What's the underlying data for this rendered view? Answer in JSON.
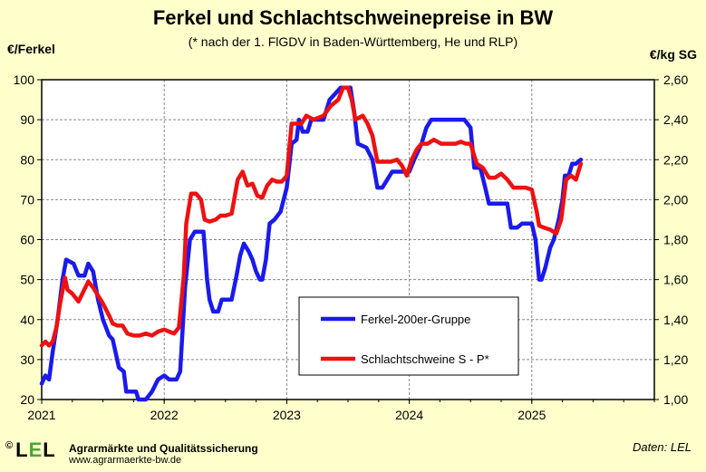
{
  "chart_data": {
    "type": "line",
    "title": "Ferkel und Schlachtschweinepreise in BW",
    "subtitle": "(* nach der 1. FlGDV in Baden-Württemberg, He und RLP)",
    "ylabel_left": "€/Ferkel",
    "ylabel_right": "€/kg SG",
    "x_ticks": [
      "2021",
      "2022",
      "2023",
      "2024",
      "2025"
    ],
    "x_range": [
      2021.0,
      2026.0
    ],
    "y_left_range": [
      20,
      100
    ],
    "y_left_ticks": [
      "20",
      "30",
      "40",
      "50",
      "60",
      "70",
      "80",
      "90",
      "100"
    ],
    "y_right_range": [
      1.0,
      2.6
    ],
    "y_right_ticks": [
      "1,00",
      "1,20",
      "1,40",
      "1,60",
      "1,80",
      "2,00",
      "2,20",
      "2,40",
      "2,60"
    ],
    "grid": true,
    "legend_position": "center",
    "series": [
      {
        "name": "Ferkel-200er-Gruppe",
        "axis": "left",
        "color": "#1a1aee",
        "points": [
          [
            2021.0,
            24
          ],
          [
            2021.03,
            26
          ],
          [
            2021.06,
            25
          ],
          [
            2021.09,
            32
          ],
          [
            2021.13,
            40
          ],
          [
            2021.17,
            50
          ],
          [
            2021.2,
            55
          ],
          [
            2021.26,
            54
          ],
          [
            2021.3,
            51
          ],
          [
            2021.35,
            51
          ],
          [
            2021.38,
            54
          ],
          [
            2021.42,
            52
          ],
          [
            2021.46,
            45
          ],
          [
            2021.5,
            40
          ],
          [
            2021.55,
            36
          ],
          [
            2021.58,
            35
          ],
          [
            2021.63,
            28
          ],
          [
            2021.67,
            27
          ],
          [
            2021.69,
            22
          ],
          [
            2021.77,
            22
          ],
          [
            2021.79,
            20
          ],
          [
            2021.85,
            20
          ],
          [
            2021.9,
            22
          ],
          [
            2021.95,
            25
          ],
          [
            2022.0,
            26
          ],
          [
            2022.04,
            25
          ],
          [
            2022.1,
            25
          ],
          [
            2022.13,
            27
          ],
          [
            2022.17,
            48
          ],
          [
            2022.21,
            60
          ],
          [
            2022.25,
            62
          ],
          [
            2022.32,
            62
          ],
          [
            2022.35,
            50
          ],
          [
            2022.37,
            45
          ],
          [
            2022.4,
            42
          ],
          [
            2022.44,
            42
          ],
          [
            2022.47,
            45
          ],
          [
            2022.55,
            45
          ],
          [
            2022.59,
            51
          ],
          [
            2022.62,
            56
          ],
          [
            2022.65,
            59
          ],
          [
            2022.69,
            57
          ],
          [
            2022.72,
            55
          ],
          [
            2022.75,
            52
          ],
          [
            2022.78,
            50
          ],
          [
            2022.8,
            50
          ],
          [
            2022.83,
            55
          ],
          [
            2022.86,
            64
          ],
          [
            2022.9,
            65
          ],
          [
            2022.95,
            67
          ],
          [
            2023.0,
            73
          ],
          [
            2023.04,
            84
          ],
          [
            2023.08,
            85
          ],
          [
            2023.1,
            90
          ],
          [
            2023.13,
            87
          ],
          [
            2023.17,
            87
          ],
          [
            2023.2,
            90
          ],
          [
            2023.3,
            90
          ],
          [
            2023.35,
            95
          ],
          [
            2023.38,
            96
          ],
          [
            2023.44,
            98
          ],
          [
            2023.49,
            98
          ],
          [
            2023.52,
            98
          ],
          [
            2023.55,
            92
          ],
          [
            2023.58,
            84
          ],
          [
            2023.65,
            83
          ],
          [
            2023.7,
            80
          ],
          [
            2023.74,
            73
          ],
          [
            2023.78,
            73
          ],
          [
            2023.82,
            75
          ],
          [
            2023.86,
            77
          ],
          [
            2023.9,
            77
          ],
          [
            2023.93,
            77
          ],
          [
            2023.96,
            77
          ],
          [
            2024.0,
            77
          ],
          [
            2024.04,
            80
          ],
          [
            2024.1,
            84
          ],
          [
            2024.14,
            88
          ],
          [
            2024.18,
            90
          ],
          [
            2024.25,
            90
          ],
          [
            2024.35,
            90
          ],
          [
            2024.45,
            90
          ],
          [
            2024.5,
            88
          ],
          [
            2024.53,
            78
          ],
          [
            2024.58,
            78
          ],
          [
            2024.62,
            73
          ],
          [
            2024.65,
            69
          ],
          [
            2024.7,
            69
          ],
          [
            2024.8,
            69
          ],
          [
            2024.83,
            63
          ],
          [
            2024.88,
            63
          ],
          [
            2024.92,
            64
          ],
          [
            2025.0,
            64
          ],
          [
            2025.03,
            60
          ],
          [
            2025.06,
            50
          ],
          [
            2025.08,
            50
          ],
          [
            2025.11,
            53
          ],
          [
            2025.15,
            58
          ],
          [
            2025.18,
            60
          ],
          [
            2025.22,
            65
          ],
          [
            2025.25,
            70
          ],
          [
            2025.27,
            76
          ],
          [
            2025.3,
            76
          ],
          [
            2025.33,
            79
          ],
          [
            2025.36,
            79
          ],
          [
            2025.4,
            80
          ]
        ]
      },
      {
        "name": "Schlachtschweine S - P*",
        "axis": "right",
        "color": "#ee1111",
        "points": [
          [
            2021.0,
            1.27
          ],
          [
            2021.03,
            1.29
          ],
          [
            2021.06,
            1.27
          ],
          [
            2021.09,
            1.29
          ],
          [
            2021.12,
            1.36
          ],
          [
            2021.15,
            1.48
          ],
          [
            2021.19,
            1.61
          ],
          [
            2021.21,
            1.55
          ],
          [
            2021.25,
            1.53
          ],
          [
            2021.3,
            1.49
          ],
          [
            2021.34,
            1.54
          ],
          [
            2021.38,
            1.59
          ],
          [
            2021.42,
            1.56
          ],
          [
            2021.46,
            1.52
          ],
          [
            2021.5,
            1.48
          ],
          [
            2021.55,
            1.42
          ],
          [
            2021.58,
            1.38
          ],
          [
            2021.62,
            1.37
          ],
          [
            2021.66,
            1.37
          ],
          [
            2021.7,
            1.33
          ],
          [
            2021.75,
            1.32
          ],
          [
            2021.8,
            1.32
          ],
          [
            2021.85,
            1.33
          ],
          [
            2021.9,
            1.32
          ],
          [
            2021.95,
            1.34
          ],
          [
            2022.0,
            1.35
          ],
          [
            2022.04,
            1.34
          ],
          [
            2022.08,
            1.33
          ],
          [
            2022.12,
            1.36
          ],
          [
            2022.16,
            1.62
          ],
          [
            2022.18,
            1.88
          ],
          [
            2022.22,
            2.03
          ],
          [
            2022.26,
            2.03
          ],
          [
            2022.3,
            2.0
          ],
          [
            2022.33,
            1.9
          ],
          [
            2022.37,
            1.89
          ],
          [
            2022.42,
            1.9
          ],
          [
            2022.46,
            1.92
          ],
          [
            2022.5,
            1.92
          ],
          [
            2022.55,
            1.93
          ],
          [
            2022.6,
            2.1
          ],
          [
            2022.64,
            2.14
          ],
          [
            2022.68,
            2.07
          ],
          [
            2022.72,
            2.08
          ],
          [
            2022.76,
            2.02
          ],
          [
            2022.8,
            2.01
          ],
          [
            2022.84,
            2.07
          ],
          [
            2022.88,
            2.1
          ],
          [
            2022.92,
            2.09
          ],
          [
            2022.96,
            2.09
          ],
          [
            2023.0,
            2.12
          ],
          [
            2023.04,
            2.38
          ],
          [
            2023.08,
            2.38
          ],
          [
            2023.12,
            2.38
          ],
          [
            2023.16,
            2.42
          ],
          [
            2023.22,
            2.4
          ],
          [
            2023.3,
            2.42
          ],
          [
            2023.36,
            2.47
          ],
          [
            2023.42,
            2.5
          ],
          [
            2023.46,
            2.56
          ],
          [
            2023.5,
            2.56
          ],
          [
            2023.53,
            2.5
          ],
          [
            2023.56,
            2.4
          ],
          [
            2023.62,
            2.42
          ],
          [
            2023.66,
            2.38
          ],
          [
            2023.7,
            2.32
          ],
          [
            2023.74,
            2.19
          ],
          [
            2023.8,
            2.19
          ],
          [
            2023.85,
            2.19
          ],
          [
            2023.9,
            2.2
          ],
          [
            2023.94,
            2.17
          ],
          [
            2023.98,
            2.12
          ],
          [
            2024.02,
            2.2
          ],
          [
            2024.06,
            2.25
          ],
          [
            2024.1,
            2.28
          ],
          [
            2024.15,
            2.28
          ],
          [
            2024.2,
            2.3
          ],
          [
            2024.26,
            2.28
          ],
          [
            2024.32,
            2.28
          ],
          [
            2024.38,
            2.28
          ],
          [
            2024.42,
            2.29
          ],
          [
            2024.46,
            2.28
          ],
          [
            2024.5,
            2.28
          ],
          [
            2024.55,
            2.18
          ],
          [
            2024.6,
            2.16
          ],
          [
            2024.65,
            2.11
          ],
          [
            2024.7,
            2.11
          ],
          [
            2024.75,
            2.13
          ],
          [
            2024.8,
            2.1
          ],
          [
            2024.85,
            2.06
          ],
          [
            2024.9,
            2.06
          ],
          [
            2024.95,
            2.06
          ],
          [
            2025.0,
            2.05
          ],
          [
            2025.04,
            1.94
          ],
          [
            2025.06,
            1.87
          ],
          [
            2025.1,
            1.86
          ],
          [
            2025.15,
            1.85
          ],
          [
            2025.2,
            1.83
          ],
          [
            2025.24,
            1.9
          ],
          [
            2025.28,
            2.1
          ],
          [
            2025.32,
            2.12
          ],
          [
            2025.36,
            2.1
          ],
          [
            2025.4,
            2.18
          ]
        ]
      }
    ]
  },
  "footer": {
    "logo_copyright": "©",
    "logo_left": "L",
    "logo_mid": "E",
    "logo_right": "L",
    "organization": "Agrarmärkte und Qualitätssicherung",
    "url": "www.agrarmaerkte-bw.de",
    "source": "Daten: LEL"
  }
}
